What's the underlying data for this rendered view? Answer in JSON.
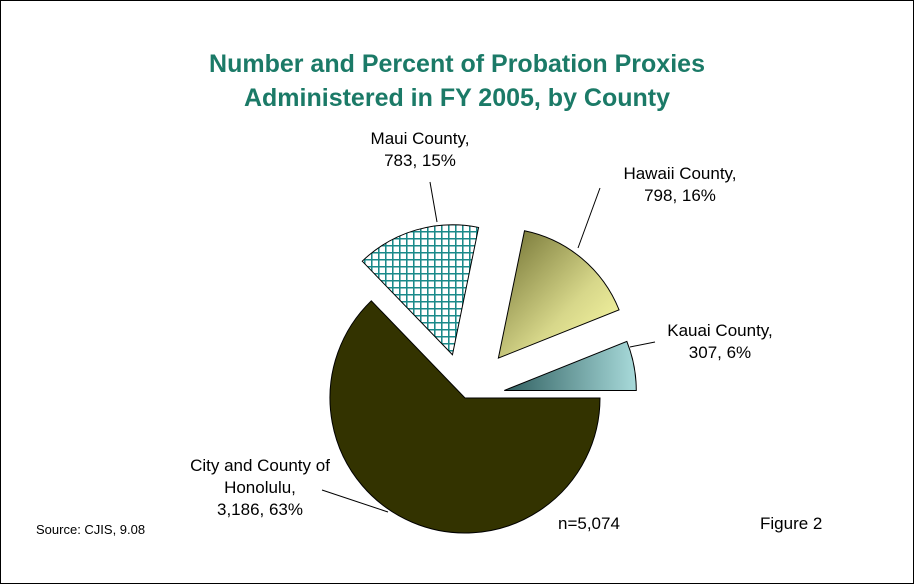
{
  "chart_data": {
    "type": "pie",
    "title": [
      "Number and Percent of Probation Proxies",
      "Administered in FY 2005, by County"
    ],
    "categories": [
      "Maui County,",
      "Hawaii County,",
      "Kauai County,",
      "City and County of Honolulu,"
    ],
    "values": [
      783,
      798,
      307,
      3186
    ],
    "value_labels": [
      "783, 15%",
      "798, 16%",
      "307, 6%",
      "3,186, 63%"
    ],
    "colors": [
      "#1a8a8a",
      "#8a8a3a",
      "#3f7f80",
      "#333300"
    ],
    "note": "n=5,074",
    "source": "Source: CJIS, 9.08",
    "figure": "Figure 2"
  }
}
